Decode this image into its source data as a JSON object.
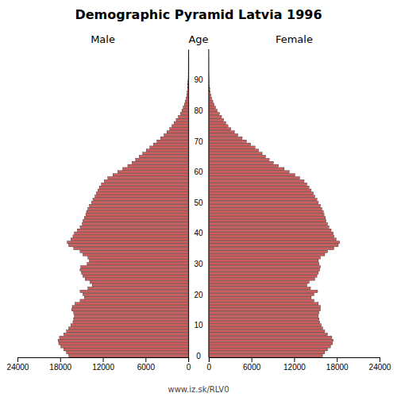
{
  "chart_data": {
    "type": "pyramid",
    "title": "Demographic Pyramid Latvia 1996",
    "ylabel": "Age",
    "annotations": [
      "www.iz.sk/RLV0"
    ],
    "orientation": "horizontal",
    "grid": false,
    "categories": [
      0,
      1,
      2,
      3,
      4,
      5,
      6,
      7,
      8,
      9,
      10,
      11,
      12,
      13,
      14,
      15,
      16,
      17,
      18,
      19,
      20,
      21,
      22,
      23,
      24,
      25,
      26,
      27,
      28,
      29,
      30,
      31,
      32,
      33,
      34,
      35,
      36,
      37,
      38,
      39,
      40,
      41,
      42,
      43,
      44,
      45,
      46,
      47,
      48,
      49,
      50,
      51,
      52,
      53,
      54,
      55,
      56,
      57,
      58,
      59,
      60,
      61,
      62,
      63,
      64,
      65,
      66,
      67,
      68,
      69,
      70,
      71,
      72,
      73,
      74,
      75,
      76,
      77,
      78,
      79,
      80,
      81,
      82,
      83,
      84,
      85,
      86,
      87,
      88,
      89,
      90,
      91,
      92,
      93,
      94,
      95,
      96,
      97,
      98,
      99
    ],
    "series": [
      {
        "name": "Male",
        "color": "#cd5c5c",
        "values": [
          16800,
          17100,
          17500,
          17900,
          18200,
          18300,
          18100,
          17500,
          17100,
          16800,
          16500,
          16200,
          16100,
          16000,
          16100,
          16400,
          16300,
          15900,
          15200,
          14600,
          14800,
          15200,
          14100,
          13500,
          13800,
          14500,
          14800,
          15000,
          15200,
          15100,
          14200,
          13900,
          14100,
          14800,
          15200,
          16100,
          16800,
          17000,
          16500,
          16200,
          16000,
          15600,
          15200,
          14900,
          14800,
          14600,
          14400,
          14300,
          14100,
          13900,
          13600,
          13400,
          13100,
          12900,
          12700,
          12500,
          12200,
          11800,
          11300,
          10600,
          9900,
          9200,
          8500,
          7900,
          7400,
          6900,
          6400,
          5900,
          5400,
          4900,
          4400,
          3900,
          3400,
          3000,
          2600,
          2300,
          2000,
          1700,
          1400,
          1100,
          900,
          700,
          550,
          420,
          300,
          210,
          150,
          100,
          65,
          40,
          25,
          15,
          9,
          5,
          3,
          2,
          1,
          1,
          0,
          0
        ]
      },
      {
        "name": "Female",
        "color": "#cd5c5c",
        "values": [
          16000,
          16300,
          16700,
          17100,
          17400,
          17500,
          17300,
          16700,
          16300,
          16000,
          15800,
          15600,
          15500,
          15400,
          15500,
          15700,
          15700,
          15400,
          14800,
          14400,
          14800,
          15300,
          14300,
          13800,
          14100,
          14900,
          15200,
          15400,
          15600,
          15700,
          15500,
          15400,
          15700,
          16300,
          16700,
          17600,
          18200,
          18400,
          17900,
          17600,
          17500,
          17200,
          16900,
          16700,
          16500,
          16400,
          16200,
          16100,
          15900,
          15700,
          15400,
          15200,
          14900,
          14700,
          14400,
          14100,
          13800,
          13400,
          12800,
          12100,
          11300,
          10600,
          9800,
          9100,
          8500,
          8000,
          7500,
          7000,
          6500,
          5900,
          5300,
          4700,
          4100,
          3600,
          3100,
          2700,
          2400,
          2100,
          1800,
          1500,
          1200,
          950,
          750,
          580,
          420,
          300,
          210,
          145,
          95,
          60,
          38,
          22,
          12,
          7,
          4,
          2,
          1,
          1,
          0,
          0
        ]
      }
    ],
    "xlim": [
      0,
      24000
    ],
    "xticks": [
      0,
      6000,
      12000,
      18000,
      24000
    ],
    "ylim": [
      -0.5,
      100
    ],
    "yticks": [
      0,
      10,
      20,
      30,
      40,
      50,
      60,
      70,
      80,
      90
    ]
  }
}
